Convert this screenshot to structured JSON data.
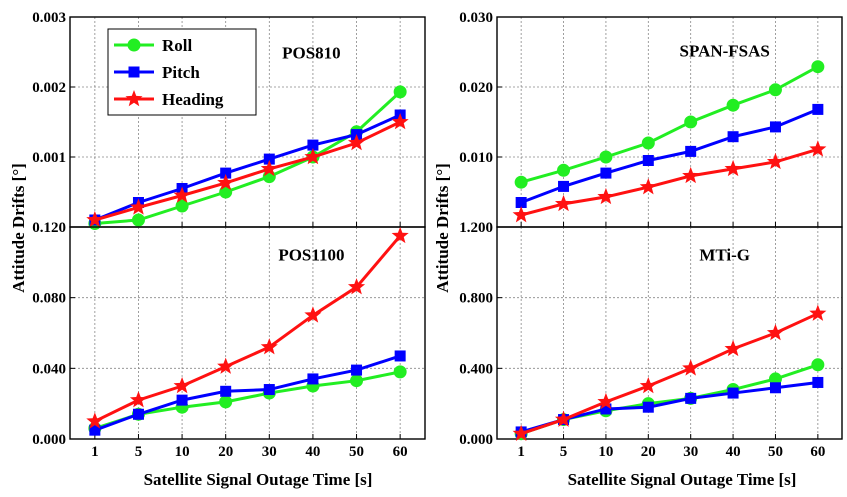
{
  "figure": {
    "xlabel": "Satellite Signal Outage Time [s]",
    "ylabel": "Attitude Drifts [°]"
  },
  "legend": {
    "placement": "top-left of upper-left panel",
    "entries": [
      {
        "name": "Roll",
        "color": "#22ee22",
        "marker": "circle"
      },
      {
        "name": "Pitch",
        "color": "#0000ff",
        "marker": "square"
      },
      {
        "name": "Heading",
        "color": "#ff1111",
        "marker": "star"
      }
    ]
  },
  "chart_data": [
    {
      "type": "line",
      "title": "POS810",
      "categories": [
        "1",
        "5",
        "10",
        "20",
        "30",
        "40",
        "50",
        "60"
      ],
      "ylim": [
        0,
        0.003
      ],
      "yticks": [
        "0.003",
        "0.002",
        "0.001"
      ],
      "grid": true,
      "series": [
        {
          "name": "Roll",
          "values": [
            5e-05,
            0.0001,
            0.0003,
            0.0005,
            0.00072,
            0.001,
            0.00136,
            0.00193
          ]
        },
        {
          "name": "Pitch",
          "values": [
            0.0001,
            0.00035,
            0.00055,
            0.00077,
            0.00097,
            0.00117,
            0.00132,
            0.0016
          ]
        },
        {
          "name": "Heading",
          "values": [
            0.0001,
            0.00028,
            0.00045,
            0.00063,
            0.00083,
            0.001,
            0.0012,
            0.0015
          ]
        }
      ]
    },
    {
      "type": "line",
      "title": "SPAN-FSAS",
      "categories": [
        "1",
        "5",
        "10",
        "20",
        "30",
        "40",
        "50",
        "60"
      ],
      "ylim": [
        0,
        0.03
      ],
      "yticks": [
        "0.030",
        "0.020",
        "0.010"
      ],
      "grid": true,
      "series": [
        {
          "name": "Roll",
          "values": [
            0.0064,
            0.0081,
            0.01,
            0.012,
            0.015,
            0.0174,
            0.0196,
            0.0229
          ]
        },
        {
          "name": "Pitch",
          "values": [
            0.0035,
            0.0058,
            0.0077,
            0.0095,
            0.0108,
            0.0129,
            0.0143,
            0.0168
          ]
        },
        {
          "name": "Heading",
          "values": [
            0.0017,
            0.0033,
            0.0043,
            0.0057,
            0.0073,
            0.0083,
            0.0093,
            0.0111
          ]
        }
      ]
    },
    {
      "type": "line",
      "title": "POS1100",
      "categories": [
        "1",
        "5",
        "10",
        "20",
        "30",
        "40",
        "50",
        "60"
      ],
      "ylim": [
        0,
        0.12
      ],
      "yticks": [
        "0.120",
        "0.080",
        "0.040",
        "0.000"
      ],
      "grid": true,
      "series": [
        {
          "name": "Roll",
          "values": [
            0.006,
            0.014,
            0.018,
            0.021,
            0.026,
            0.03,
            0.033,
            0.038
          ]
        },
        {
          "name": "Pitch",
          "values": [
            0.005,
            0.014,
            0.022,
            0.027,
            0.028,
            0.034,
            0.039,
            0.047
          ]
        },
        {
          "name": "Heading",
          "values": [
            0.01,
            0.022,
            0.03,
            0.041,
            0.052,
            0.07,
            0.086,
            0.115
          ]
        }
      ]
    },
    {
      "type": "line",
      "title": "MTi-G",
      "categories": [
        "1",
        "5",
        "10",
        "20",
        "30",
        "40",
        "50",
        "60"
      ],
      "ylim": [
        0,
        1.2
      ],
      "yticks": [
        "1.200",
        "0.800",
        "0.400",
        "0.000"
      ],
      "grid": true,
      "series": [
        {
          "name": "Roll",
          "values": [
            0.03,
            0.11,
            0.16,
            0.2,
            0.23,
            0.28,
            0.34,
            0.42
          ]
        },
        {
          "name": "Pitch",
          "values": [
            0.04,
            0.11,
            0.17,
            0.18,
            0.23,
            0.26,
            0.29,
            0.32
          ]
        },
        {
          "name": "Heading",
          "values": [
            0.03,
            0.11,
            0.21,
            0.3,
            0.4,
            0.51,
            0.6,
            0.71
          ]
        }
      ]
    }
  ]
}
